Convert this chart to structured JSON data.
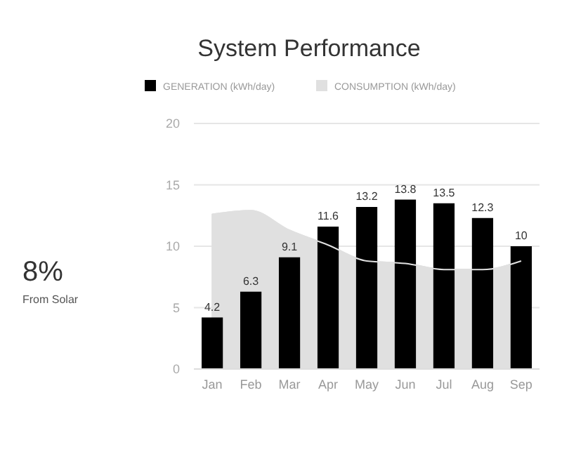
{
  "chart_data": {
    "type": "bar",
    "title": "System Performance",
    "categories": [
      "Jan",
      "Feb",
      "Mar",
      "Apr",
      "May",
      "Jun",
      "Jul",
      "Aug",
      "Sep"
    ],
    "series": [
      {
        "name": "GENERATION (kWh/day)",
        "color": "#000000",
        "values": [
          4.2,
          6.3,
          9.1,
          11.6,
          13.2,
          13.8,
          13.5,
          12.3,
          10
        ],
        "value_labels": [
          "4.2",
          "6.3",
          "9.1",
          "11.6",
          "13.2",
          "13.8",
          "13.5",
          "12.3",
          "10"
        ]
      },
      {
        "name": "CONSUMPTION (kWh/day)",
        "type": "area",
        "color": "#e0e0e0",
        "values": [
          12.6,
          12.9,
          11.3,
          10.1,
          8.8,
          8.6,
          8.1,
          8.1,
          8.8
        ]
      }
    ],
    "ylim": [
      0,
      20
    ],
    "yticks": [
      0,
      5,
      10,
      15,
      20
    ],
    "grid": "y",
    "legend": "top",
    "annotations": [
      "8%",
      "From Solar"
    ]
  }
}
